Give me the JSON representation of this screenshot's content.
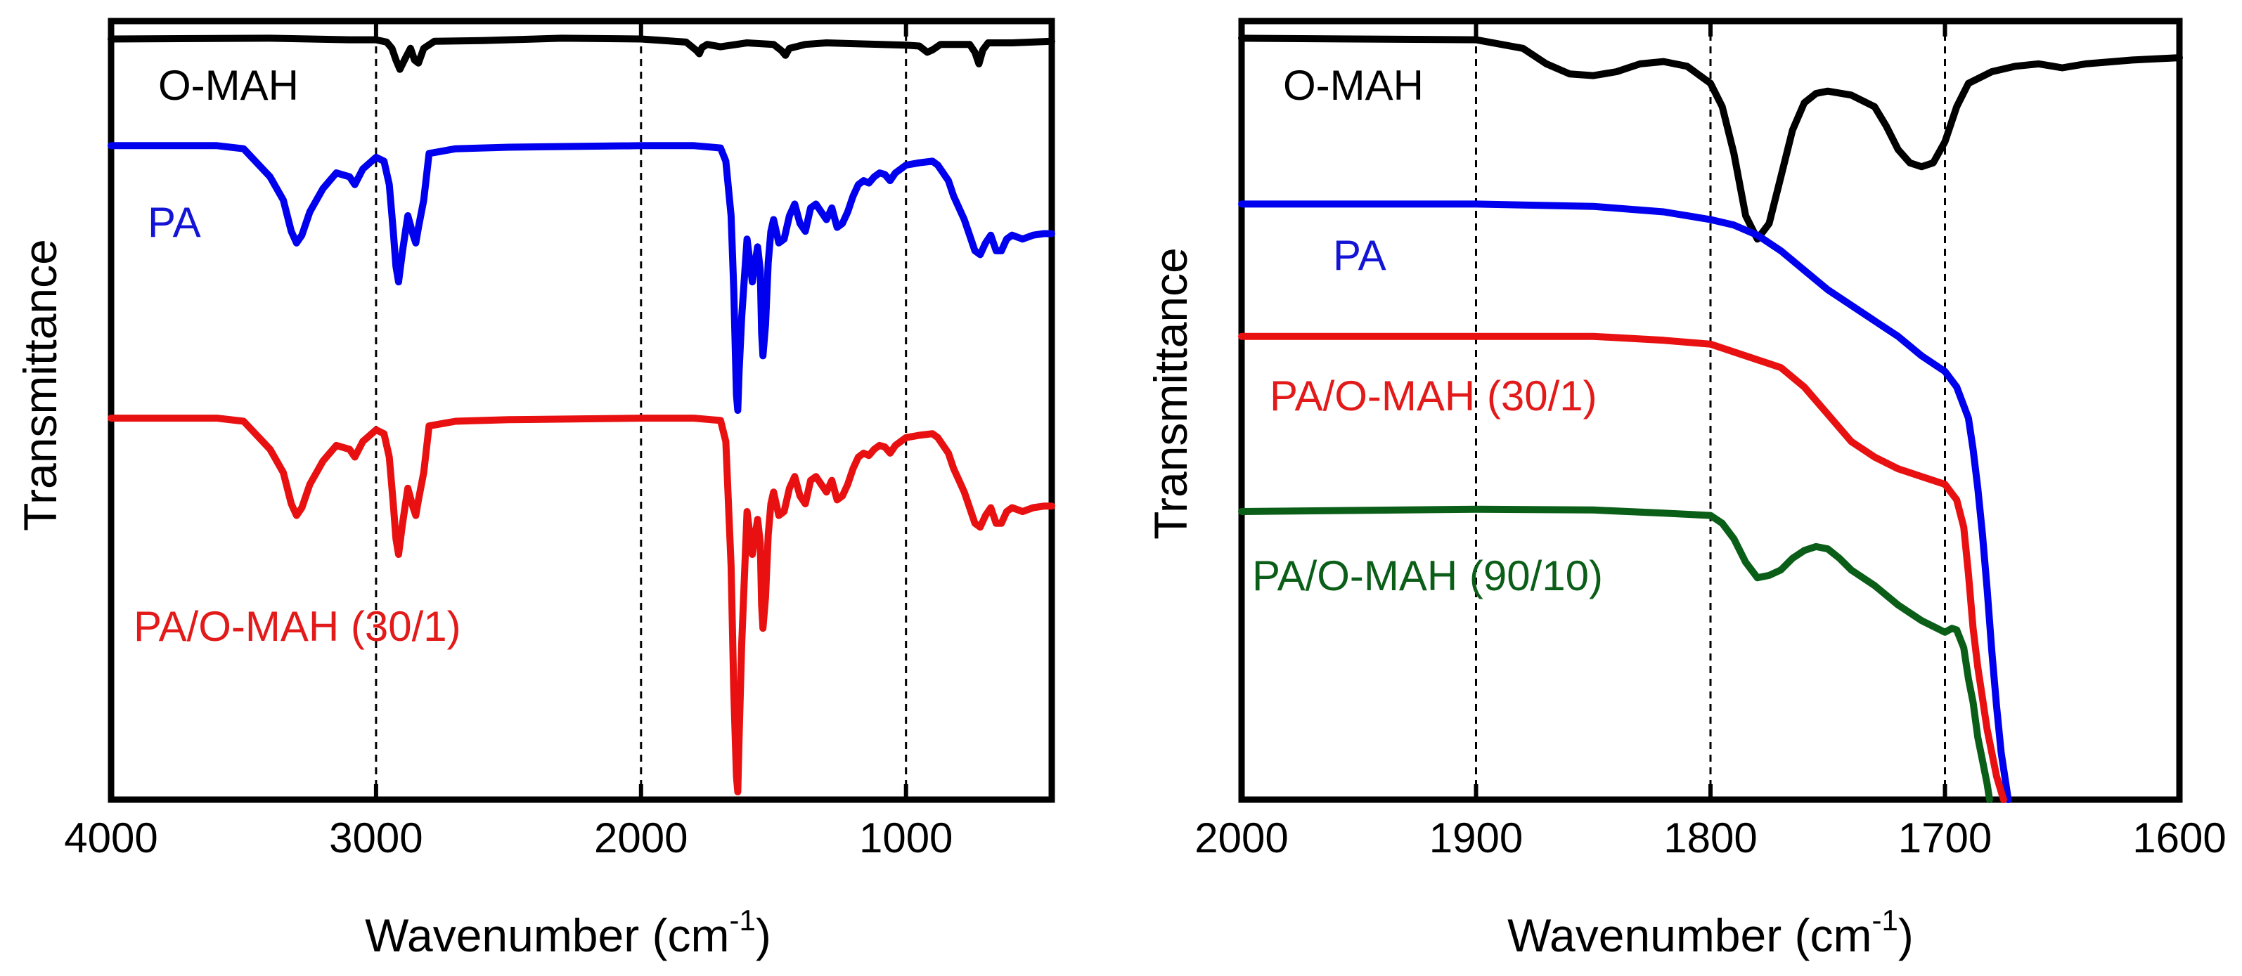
{
  "chart_data": [
    {
      "type": "line",
      "panel": "left",
      "xlabel_main": "Wavenumber (cm",
      "xlabel_sup": "-1",
      "xlabel_close": ")",
      "ylabel": "Transmittance",
      "xlim": [
        4000,
        450
      ],
      "ylim": [
        0,
        100
      ],
      "x_ticks": [
        4000,
        3000,
        2000,
        1000
      ],
      "x_tick_labels": [
        "4000",
        "3000",
        "2000",
        "1000"
      ],
      "gridlines_x": [
        3000,
        2000,
        1000
      ],
      "series": [
        {
          "name": "O-MAH",
          "color": "#000000",
          "label_color": "#000000",
          "x": [
            4000,
            3400,
            3100,
            3000,
            2960,
            2940,
            2925,
            2910,
            2890,
            2870,
            2855,
            2840,
            2820,
            2780,
            2600,
            2300,
            2000,
            1830,
            1790,
            1780,
            1770,
            1750,
            1700,
            1600,
            1500,
            1470,
            1455,
            1440,
            1380,
            1300,
            1200,
            1000,
            950,
            920,
            900,
            870,
            760,
            740,
            725,
            710,
            690,
            600,
            450
          ],
          "y": [
            97.7,
            97.8,
            97.6,
            97.6,
            97.3,
            96.5,
            95,
            93.8,
            95.2,
            96.5,
            95,
            94.6,
            96.5,
            97.4,
            97.5,
            97.8,
            97.7,
            97.3,
            96.2,
            95.8,
            96.6,
            97.0,
            96.7,
            97.2,
            97,
            96.2,
            95.6,
            96.5,
            97,
            97.2,
            97.1,
            96.9,
            96.8,
            96.0,
            96.3,
            97,
            97,
            96,
            94.5,
            96.3,
            97.2,
            97.2,
            97.4
          ]
        },
        {
          "name": "PA",
          "color": "#0000ee",
          "label_color": "#1414d6",
          "x": [
            4000,
            3600,
            3500,
            3400,
            3350,
            3320,
            3300,
            3280,
            3250,
            3200,
            3150,
            3100,
            3080,
            3050,
            3000,
            2970,
            2950,
            2935,
            2925,
            2915,
            2900,
            2880,
            2860,
            2850,
            2840,
            2820,
            2800,
            2700,
            2500,
            2000,
            1800,
            1700,
            1680,
            1660,
            1650,
            1640,
            1635,
            1630,
            1620,
            1600,
            1580,
            1560,
            1550,
            1545,
            1540,
            1530,
            1520,
            1510,
            1500,
            1480,
            1460,
            1440,
            1420,
            1400,
            1380,
            1360,
            1340,
            1320,
            1300,
            1280,
            1260,
            1240,
            1220,
            1200,
            1180,
            1160,
            1140,
            1120,
            1100,
            1080,
            1060,
            1040,
            1020,
            1000,
            950,
            900,
            880,
            860,
            840,
            820,
            800,
            780,
            760,
            740,
            720,
            700,
            680,
            660,
            640,
            620,
            600,
            560,
            520,
            480,
            450
          ],
          "y": [
            84,
            84,
            83.6,
            80,
            77,
            73,
            71.5,
            72.5,
            75.5,
            78.5,
            80.5,
            80,
            79,
            81,
            82.5,
            82,
            79,
            73,
            68.5,
            66.5,
            70.5,
            75,
            72.5,
            71.5,
            73.5,
            77,
            83,
            83.6,
            83.8,
            84,
            84,
            83.7,
            82,
            75,
            65.5,
            52,
            50,
            55,
            62,
            72,
            66.5,
            71,
            68,
            60,
            57,
            61,
            69,
            73,
            74.5,
            71.5,
            72,
            75,
            76.5,
            74,
            73,
            76,
            76.5,
            75.5,
            74.5,
            76,
            73.5,
            74,
            75.5,
            77.5,
            79,
            79.5,
            79.2,
            80,
            80.5,
            80.3,
            79.5,
            80.5,
            81,
            81.5,
            81.8,
            82,
            81.5,
            80.5,
            79.5,
            77.5,
            76,
            74.5,
            72.5,
            70.5,
            70,
            71.5,
            72.5,
            70.5,
            70.5,
            72,
            72.5,
            72,
            72.5,
            72.7,
            72.7
          ]
        },
        {
          "name": "PA/O-MAH (30/1)",
          "color": "#e81010",
          "label_color": "#e21a1a",
          "x": [
            4000,
            3600,
            3500,
            3400,
            3350,
            3320,
            3300,
            3280,
            3250,
            3200,
            3150,
            3100,
            3080,
            3050,
            3000,
            2970,
            2950,
            2935,
            2925,
            2915,
            2900,
            2880,
            2860,
            2850,
            2840,
            2820,
            2800,
            2700,
            2500,
            2000,
            1800,
            1700,
            1680,
            1660,
            1650,
            1640,
            1635,
            1630,
            1620,
            1600,
            1580,
            1560,
            1550,
            1545,
            1540,
            1530,
            1520,
            1510,
            1500,
            1480,
            1460,
            1440,
            1420,
            1400,
            1380,
            1360,
            1340,
            1320,
            1300,
            1280,
            1260,
            1240,
            1220,
            1200,
            1180,
            1160,
            1140,
            1120,
            1100,
            1080,
            1060,
            1040,
            1020,
            1000,
            950,
            900,
            880,
            860,
            840,
            820,
            800,
            780,
            760,
            740,
            720,
            700,
            680,
            660,
            640,
            620,
            600,
            560,
            520,
            480,
            450
          ],
          "y": [
            49,
            49,
            48.6,
            45,
            42,
            38,
            36.5,
            37.5,
            40.5,
            43.5,
            45.5,
            45,
            44,
            46,
            47.5,
            47,
            44,
            38,
            33.5,
            31.5,
            35.5,
            40,
            37.5,
            36.5,
            38.5,
            42,
            48,
            48.6,
            48.8,
            49,
            49,
            48.7,
            46,
            30,
            14,
            3,
            1,
            8,
            20,
            37,
            31.5,
            36,
            33,
            25,
            22,
            26,
            34,
            38,
            39.5,
            36.5,
            37,
            40,
            41.5,
            39,
            38,
            41,
            41.5,
            40.5,
            39.5,
            41,
            38.5,
            39,
            40.5,
            42.5,
            44,
            44.5,
            44.2,
            45,
            45.5,
            45.3,
            44.5,
            45.5,
            46,
            46.5,
            46.8,
            47,
            46.5,
            45.5,
            44.5,
            42.5,
            41,
            39.5,
            37.5,
            35.5,
            35,
            36.5,
            37.5,
            35.5,
            35.5,
            37,
            37.5,
            37,
            37.5,
            37.7,
            37.7
          ]
        }
      ],
      "labels": {
        "omah": "O-MAH",
        "pa": "PA",
        "blend": "PA/O-MAH (30/1)"
      }
    },
    {
      "type": "line",
      "panel": "right",
      "xlabel_main": "Wavenumber (cm",
      "xlabel_sup": "-1",
      "xlabel_close": ")",
      "ylabel": "Transmittance",
      "xlim": [
        2000,
        1600
      ],
      "ylim": [
        0,
        100
      ],
      "x_ticks": [
        2000,
        1900,
        1800,
        1700,
        1600
      ],
      "x_tick_labels": [
        "2000",
        "1900",
        "1800",
        "1700",
        "1600"
      ],
      "gridlines_x": [
        1900,
        1800,
        1700
      ],
      "series": [
        {
          "name": "O-MAH",
          "color": "#000000",
          "label_color": "#000000",
          "x": [
            2000,
            1900,
            1880,
            1870,
            1860,
            1850,
            1840,
            1830,
            1820,
            1810,
            1800,
            1795,
            1790,
            1785,
            1780,
            1775,
            1770,
            1765,
            1760,
            1755,
            1750,
            1740,
            1730,
            1725,
            1720,
            1715,
            1710,
            1705,
            1700,
            1695,
            1690,
            1680,
            1670,
            1660,
            1650,
            1640,
            1620,
            1600
          ],
          "y": [
            97.8,
            97.6,
            96.5,
            94.5,
            93.2,
            93,
            93.5,
            94.5,
            94.8,
            94.2,
            92,
            89,
            83,
            75,
            72,
            74,
            80,
            86,
            89.5,
            90.7,
            91,
            90.5,
            89,
            86.5,
            83.5,
            81.8,
            81.3,
            81.8,
            84.5,
            89,
            92,
            93.5,
            94.2,
            94.5,
            94,
            94.5,
            95,
            95.3
          ]
        },
        {
          "name": "PA",
          "color": "#0000ee",
          "label_color": "#1414d6",
          "x": [
            2000,
            1900,
            1850,
            1820,
            1800,
            1790,
            1780,
            1770,
            1760,
            1750,
            1740,
            1730,
            1720,
            1710,
            1700,
            1695,
            1690,
            1688,
            1686,
            1684,
            1682,
            1680,
            1678,
            1676,
            1674,
            1673
          ],
          "y": [
            76.5,
            76.5,
            76.2,
            75.5,
            74.5,
            73.8,
            72.5,
            70.5,
            68,
            65.5,
            63.5,
            61.5,
            59.5,
            57,
            55,
            53,
            49,
            45,
            40,
            34,
            27,
            19,
            12,
            6,
            2,
            0
          ]
        },
        {
          "name": "PA/O-MAH (30/1)",
          "color": "#e81010",
          "label_color": "#e21a1a",
          "x": [
            2000,
            1900,
            1850,
            1820,
            1800,
            1790,
            1780,
            1770,
            1760,
            1750,
            1740,
            1730,
            1720,
            1710,
            1700,
            1695,
            1692,
            1690,
            1688,
            1686,
            1684,
            1682,
            1680,
            1678,
            1676,
            1675
          ],
          "y": [
            59.5,
            59.5,
            59.5,
            59,
            58.5,
            57.5,
            56.5,
            55.5,
            53,
            49.5,
            46,
            44,
            42.5,
            41.5,
            40.5,
            38.5,
            35,
            29,
            22,
            17,
            13,
            9,
            6,
            3,
            1,
            0
          ]
        },
        {
          "name": "PA/O-MAH (90/10)",
          "color": "#0b5e18",
          "label_color": "#0b5e18",
          "x": [
            2000,
            1900,
            1850,
            1820,
            1800,
            1795,
            1790,
            1785,
            1780,
            1775,
            1770,
            1765,
            1760,
            1755,
            1750,
            1745,
            1740,
            1730,
            1720,
            1710,
            1700,
            1697,
            1695,
            1692,
            1690,
            1688,
            1686,
            1684,
            1682,
            1681
          ],
          "y": [
            37,
            37.3,
            37.2,
            36.8,
            36.5,
            35.5,
            33.5,
            30.5,
            28.5,
            28.8,
            29.5,
            31,
            32,
            32.5,
            32.2,
            31,
            29.5,
            27.5,
            25,
            23,
            21.5,
            22,
            21.8,
            19.5,
            15.5,
            12.5,
            8,
            5,
            2,
            0
          ]
        }
      ],
      "labels": {
        "omah": "O-MAH",
        "pa": "PA",
        "blend30": "PA/O-MAH (30/1)",
        "blend90": "PA/O-MAH (90/10)"
      }
    }
  ]
}
